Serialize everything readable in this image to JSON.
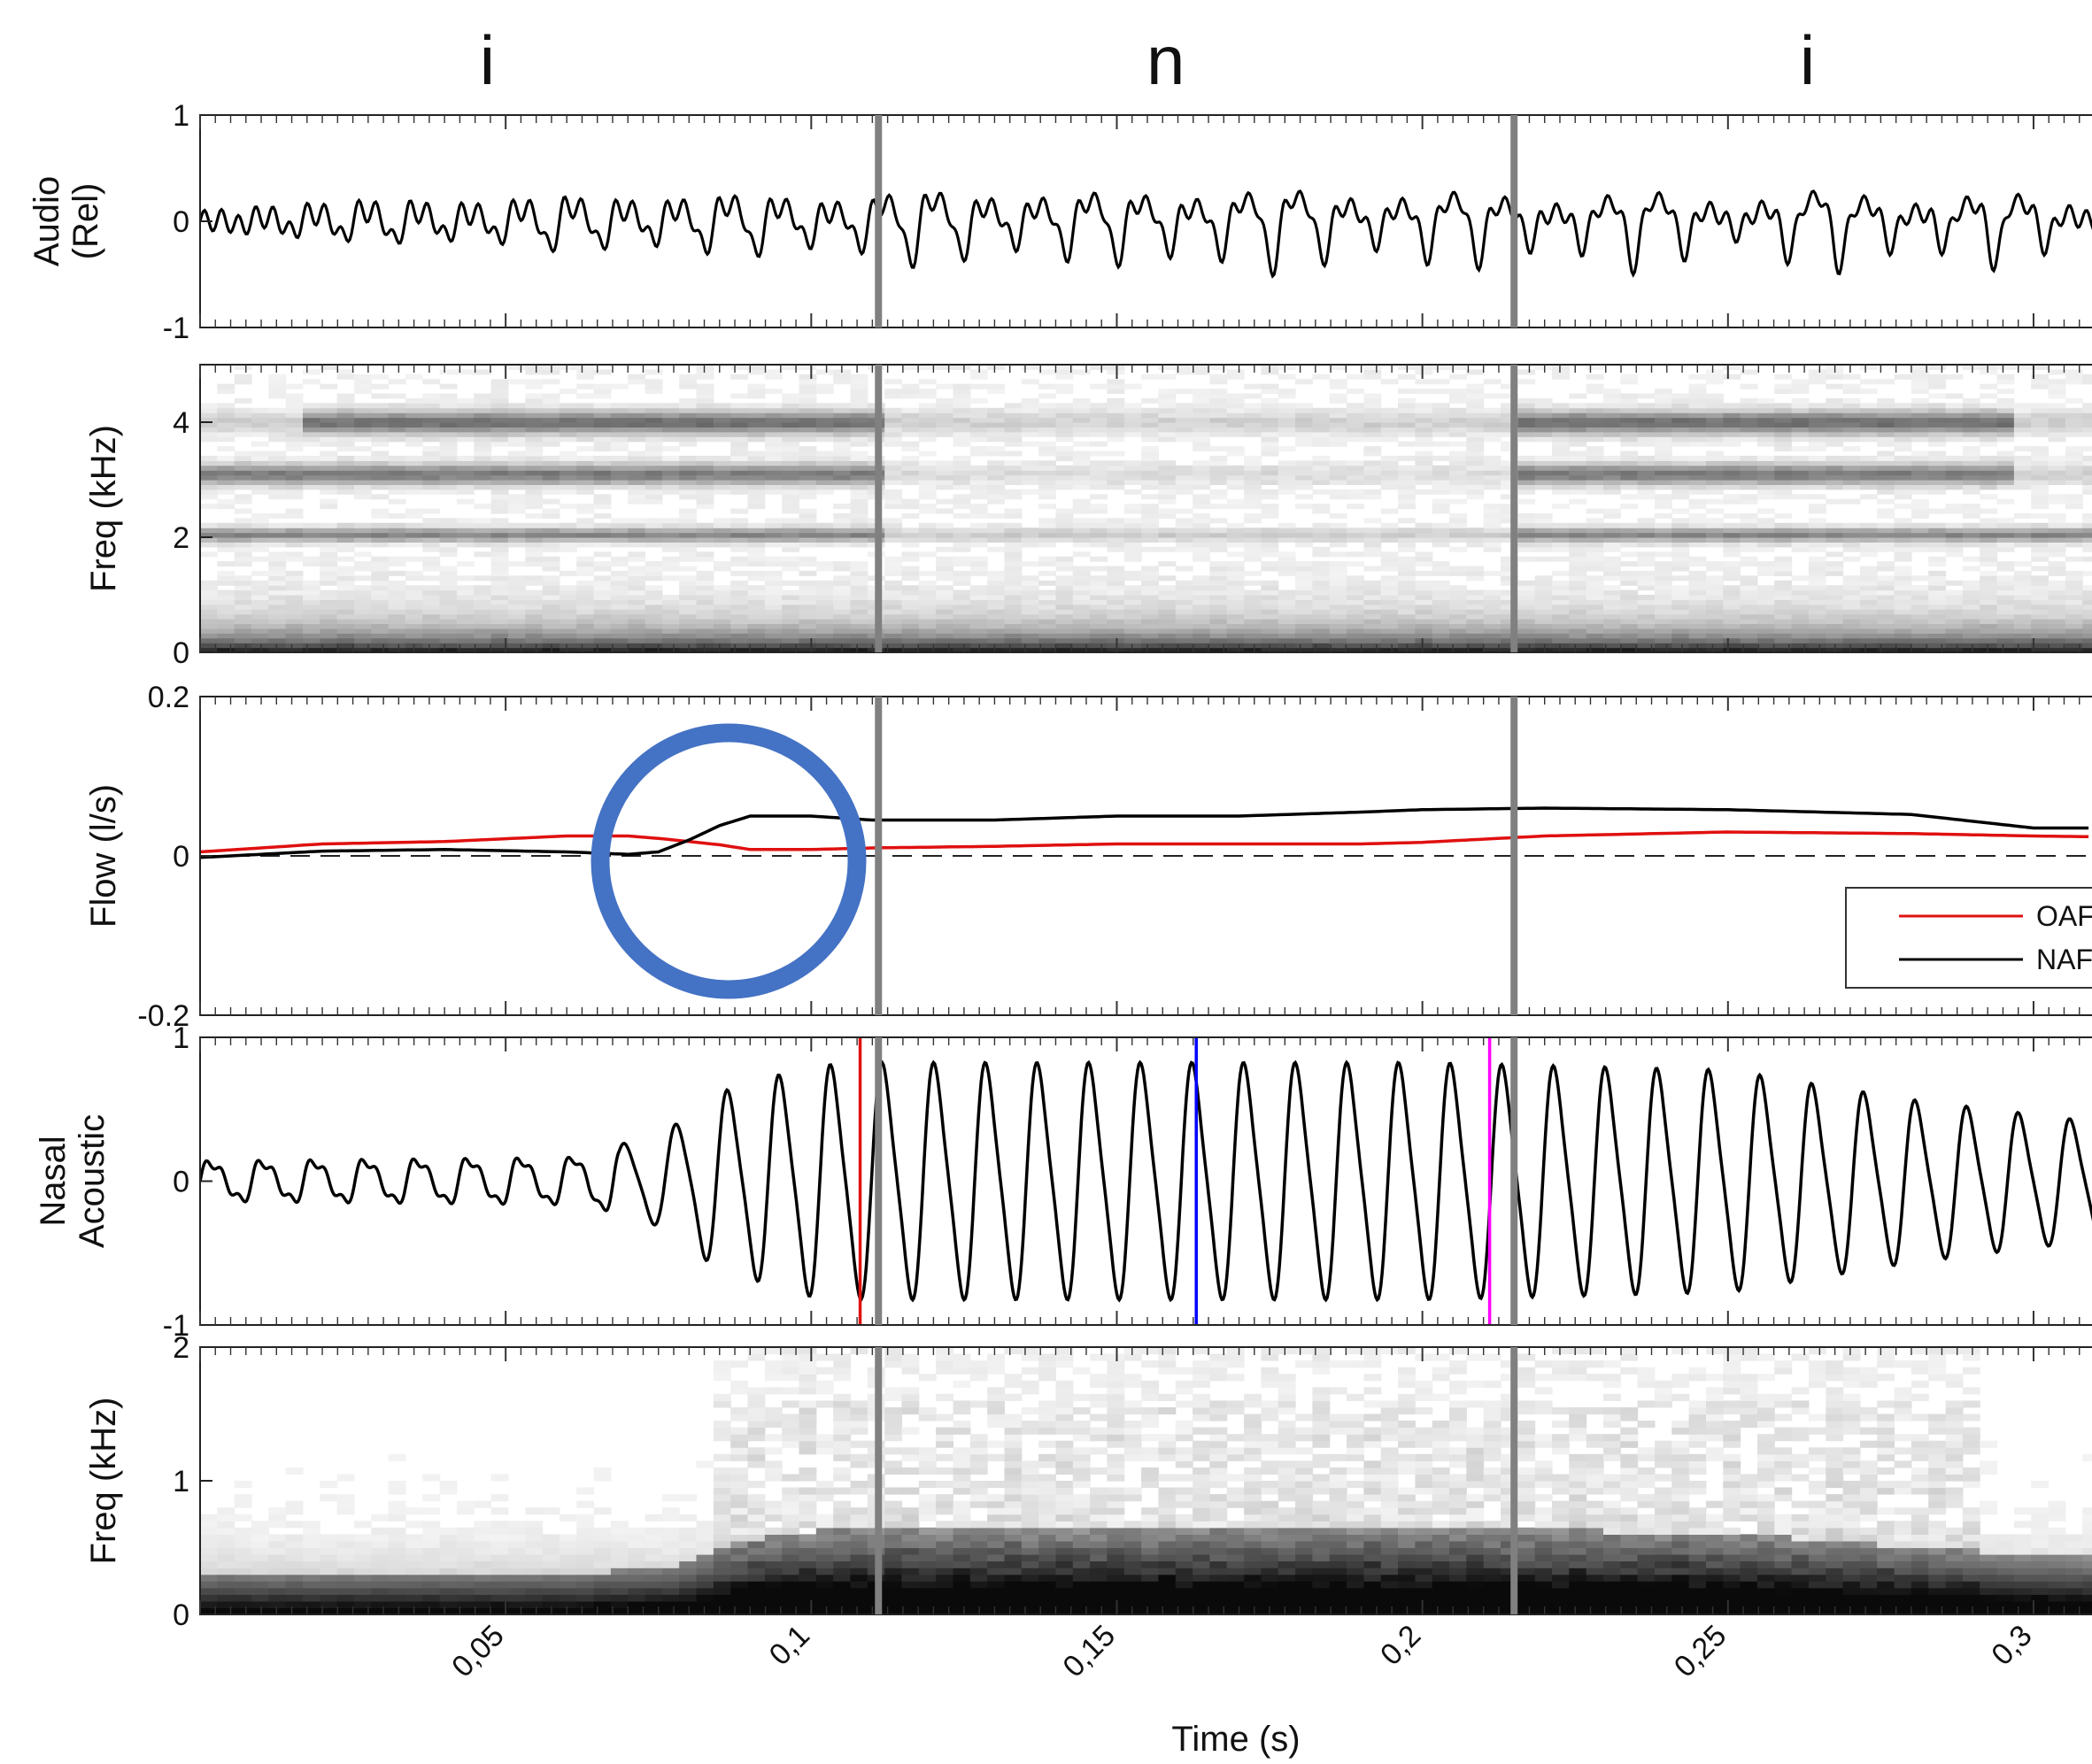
{
  "segments": [
    {
      "label": "i",
      "x": 0.047
    },
    {
      "label": "n",
      "x": 0.158
    },
    {
      "label": "i",
      "x": 0.263
    }
  ],
  "boundaries": [
    0.111,
    0.215
  ],
  "x_tick_labels": [
    "0,05",
    "0,1",
    "0,15",
    "0,2",
    "0,25",
    "0,3"
  ],
  "x_ticks": [
    0.05,
    0.1,
    0.15,
    0.2,
    0.25,
    0.3
  ],
  "xlabel": "Time (s)",
  "xlim": [
    0.0,
    0.31
  ],
  "colors": {
    "oaf": "#e01010",
    "naf": "#000000",
    "boundary": "#808080",
    "circle": "#4472c4",
    "blue_marker": "#0000ff",
    "magenta_marker": "#ff00ff"
  },
  "chart_data": [
    {
      "type": "line",
      "panel": "audio",
      "ylabel_lines": [
        "Audio",
        "(Rel)"
      ],
      "ylim": [
        -1,
        1
      ],
      "yticks": [
        {
          "label": "1",
          "v": 1
        },
        {
          "label": "0",
          "v": 0
        },
        {
          "label": "-1",
          "v": -1
        }
      ],
      "series": [
        {
          "values": [
            0.0,
            -0.12,
            0.22,
            -0.15,
            0.3,
            -0.2,
            0.35,
            -0.18,
            0.45,
            -0.22,
            0.42,
            -0.25,
            0.5,
            -0.2,
            0.45,
            -0.15,
            0.48,
            -0.1,
            0.5,
            -0.15,
            0.45,
            0.0
          ]
        }
      ]
    },
    {
      "type": "heatmap",
      "panel": "audio-spectrogram",
      "ylabel": "Freq (kHz)",
      "ylim": [
        0,
        5
      ],
      "yticks": [
        {
          "label": "4",
          "v": 4
        },
        {
          "label": "2",
          "v": 2
        },
        {
          "label": "0",
          "v": 0
        }
      ],
      "formant_bands_khz": [
        0.25,
        2.05,
        3.1,
        4.0
      ]
    },
    {
      "type": "line",
      "panel": "flow",
      "ylabel": "Flow (l/s)",
      "ylim": [
        -0.2,
        0.2
      ],
      "yticks": [
        {
          "label": "0.2",
          "v": 0.2
        },
        {
          "label": "0",
          "v": 0
        },
        {
          "label": "-0.2",
          "v": -0.2
        }
      ],
      "x": [
        0,
        0.02,
        0.04,
        0.06,
        0.07,
        0.075,
        0.08,
        0.085,
        0.09,
        0.1,
        0.11,
        0.13,
        0.15,
        0.17,
        0.19,
        0.2,
        0.22,
        0.25,
        0.28,
        0.3,
        0.31
      ],
      "series": [
        {
          "name": "OAF",
          "values": [
            0.005,
            0.015,
            0.018,
            0.025,
            0.025,
            0.022,
            0.018,
            0.014,
            0.008,
            0.008,
            0.01,
            0.012,
            0.015,
            0.015,
            0.015,
            0.017,
            0.025,
            0.03,
            0.028,
            0.025,
            0.024
          ]
        },
        {
          "name": "NAF",
          "values": [
            -0.002,
            0.006,
            0.008,
            0.005,
            0.002,
            0.005,
            0.02,
            0.038,
            0.05,
            0.05,
            0.045,
            0.045,
            0.05,
            0.05,
            0.055,
            0.058,
            0.06,
            0.058,
            0.052,
            0.035,
            0.035
          ]
        }
      ],
      "legend": {
        "entries": [
          "OAF",
          "NAF"
        ],
        "placement": "lower-right"
      }
    },
    {
      "type": "line",
      "panel": "nasal-acoustic",
      "ylabel_lines": [
        "Nasal",
        "Acoustic"
      ],
      "ylim": [
        -1,
        1
      ],
      "yticks": [
        {
          "label": "1",
          "v": 1
        },
        {
          "label": "0",
          "v": 0
        },
        {
          "label": "-1",
          "v": -1
        }
      ],
      "markers": [
        {
          "color": "red",
          "x": 0.108
        },
        {
          "color": "blue",
          "x": 0.163
        },
        {
          "color": "magenta",
          "x": 0.211
        }
      ],
      "envelope": {
        "x": [
          0,
          0.06,
          0.075,
          0.085,
          0.1,
          0.11,
          0.2,
          0.25,
          0.28,
          0.31
        ],
        "amp": [
          0.15,
          0.18,
          0.3,
          0.6,
          0.78,
          0.8,
          0.8,
          0.75,
          0.55,
          0.4
        ]
      }
    },
    {
      "type": "heatmap",
      "panel": "nasal-spectrogram",
      "ylabel": "Freq (kHz)",
      "ylim": [
        0,
        2
      ],
      "yticks": [
        {
          "label": "2",
          "v": 2
        },
        {
          "label": "1",
          "v": 1
        },
        {
          "label": "0",
          "v": 0
        }
      ]
    }
  ]
}
